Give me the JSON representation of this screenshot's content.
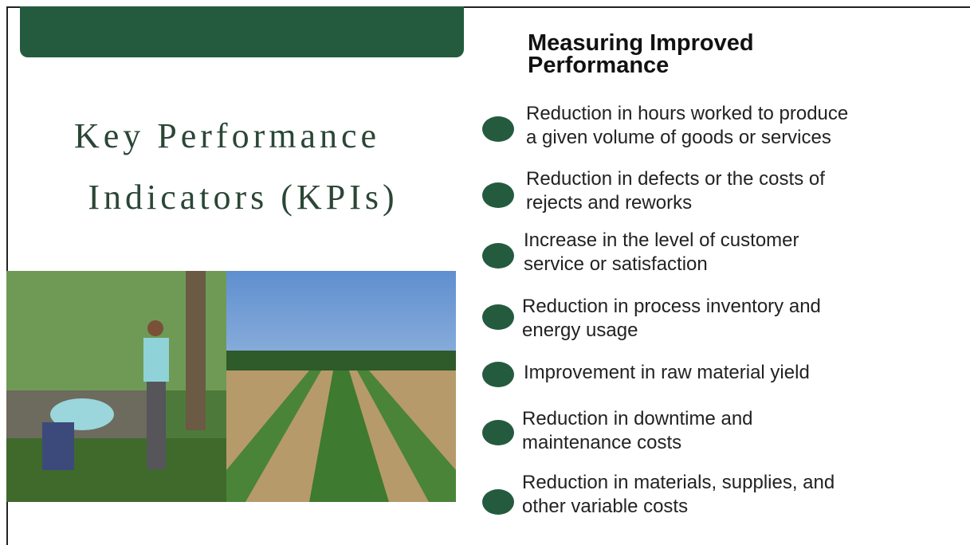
{
  "slide": {
    "title_lines": [
      "Key Performance",
      "Indicators (KPIs)"
    ],
    "heading_lines": [
      "Measuring Improved",
      "Performance"
    ],
    "bullets": [
      {
        "lines": [
          "Reduction in hours worked to produce",
          "a given volume of goods or services"
        ]
      },
      {
        "lines": [
          "Reduction in defects or the costs of",
          "rejects and reworks"
        ]
      },
      {
        "lines": [
          "Increase in the level of customer",
          "service or satisfaction"
        ]
      },
      {
        "lines": [
          "Reduction in process inventory and",
          "energy usage"
        ]
      },
      {
        "lines": [
          "Improvement in raw material yield"
        ]
      },
      {
        "lines": [
          "Reduction in downtime and",
          "maintenance costs"
        ]
      },
      {
        "lines": [
          "Reduction in materials, supplies, and",
          "other variable costs"
        ]
      }
    ]
  }
}
